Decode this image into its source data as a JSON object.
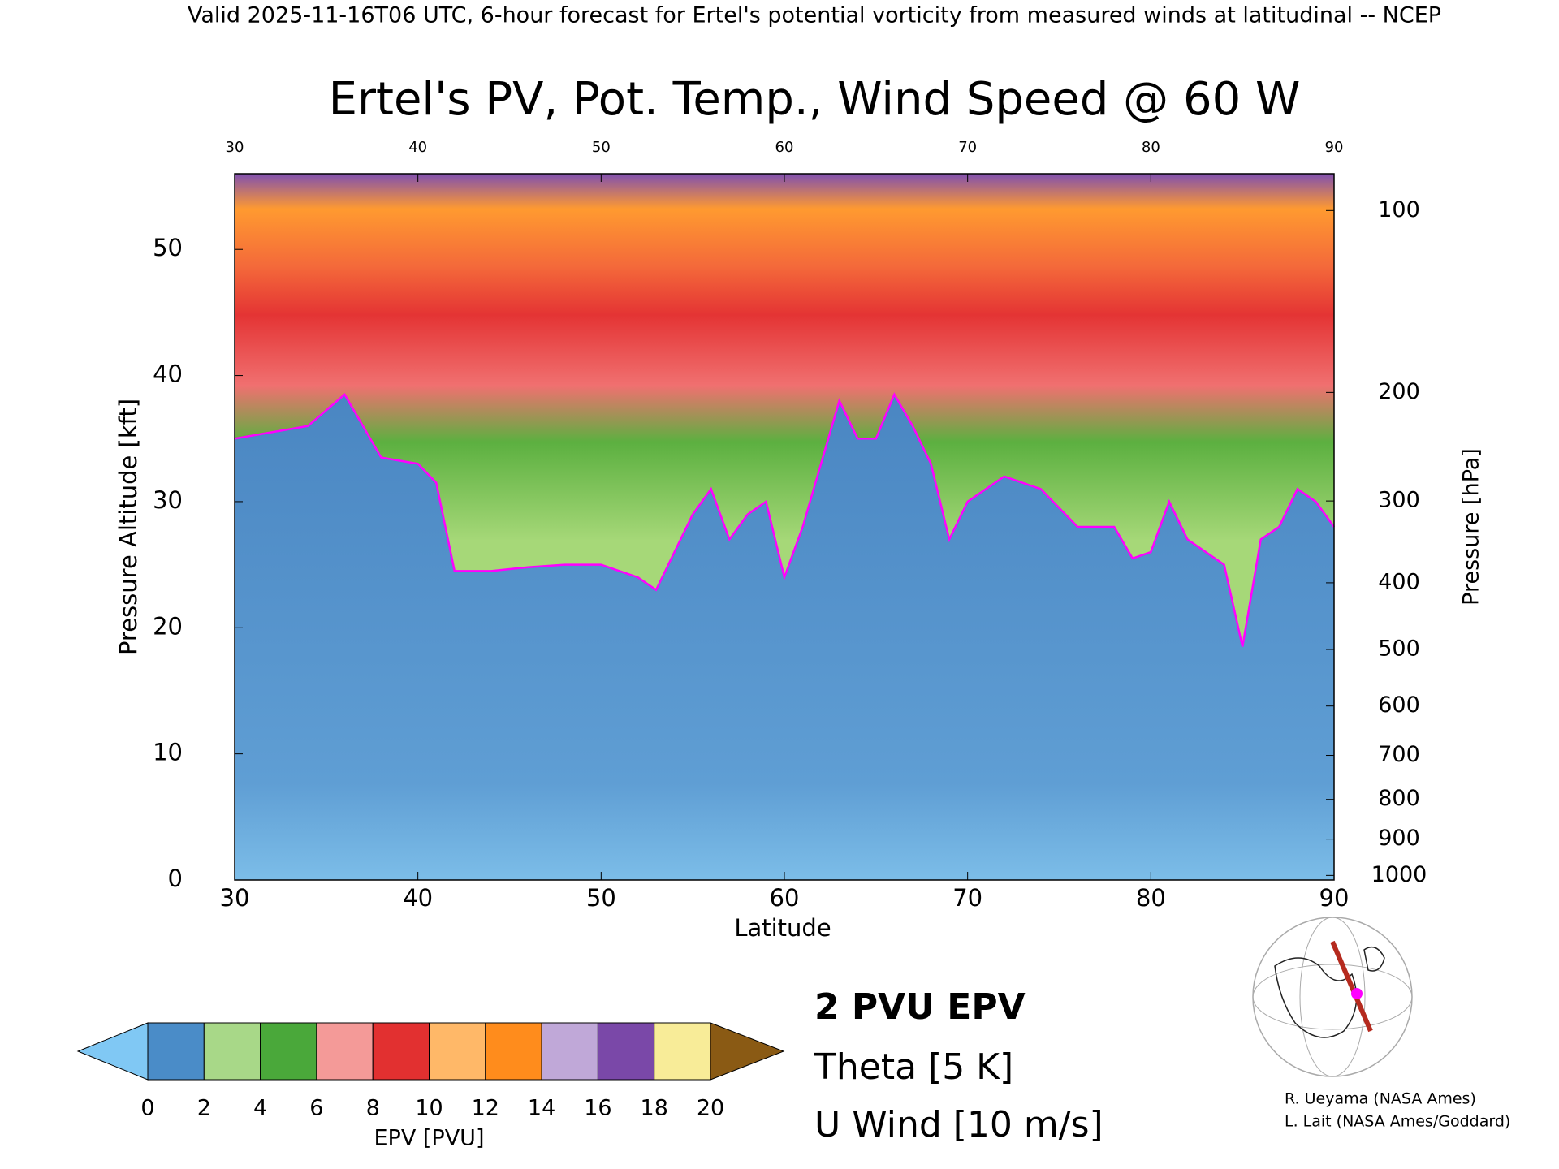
{
  "chart_data": {
    "type": "line",
    "header": "Valid 2025-11-16T06 UTC, 6-hour forecast for Ertel's potential vorticity from measured winds at latitudinal -- NCEP",
    "title": "Ertel's PV, Pot. Temp., Wind Speed @ 60 W",
    "xlabel": "Latitude",
    "ylabel": "Pressure Altitude [kft]",
    "y2label": "Pressure [hPa]",
    "xlim": [
      30,
      90
    ],
    "xticks": [
      30,
      40,
      50,
      60,
      70,
      80,
      90
    ],
    "ylim": [
      0,
      56
    ],
    "yticks": [
      0,
      10,
      20,
      30,
      40,
      50
    ],
    "y2ticks": [
      100,
      200,
      300,
      400,
      500,
      600,
      700,
      800,
      900,
      1000
    ],
    "series": [
      {
        "name": "2 PVU EPV",
        "color": "#ff00ff",
        "x": [
          30,
          32,
          34,
          36,
          37,
          38,
          40,
          41,
          42,
          44,
          46,
          48,
          50,
          52,
          53,
          54,
          55,
          56,
          57,
          58,
          59,
          60,
          61,
          62,
          63,
          64,
          65,
          66,
          67,
          68,
          69,
          70,
          72,
          74,
          76,
          78,
          79,
          80,
          81,
          82,
          84,
          85,
          86,
          87,
          88,
          89,
          90
        ],
        "values": [
          35,
          35.5,
          36,
          38.5,
          36,
          33.5,
          33,
          31.5,
          24.5,
          24.5,
          24.8,
          25,
          25,
          24,
          23,
          26,
          29,
          31,
          27,
          29,
          30,
          24,
          28,
          33,
          38,
          35,
          35,
          38.5,
          36,
          33,
          27,
          30,
          32,
          31,
          28,
          28,
          25.5,
          26,
          30,
          27,
          25,
          18.5,
          27,
          28,
          31,
          30,
          28
        ]
      }
    ],
    "annotations": [
      {
        "text": "Theta [5 K]",
        "color": "#a8a8a8"
      },
      {
        "text": "U Wind [10 m/s]",
        "color": "#000000"
      }
    ],
    "colorbar": {
      "label": "EPV [PVU]",
      "ticks": [
        0,
        2,
        4,
        6,
        8,
        10,
        12,
        14,
        16,
        18,
        20
      ],
      "colors": [
        "#4a8cc8",
        "#a8d888",
        "#4aa83a",
        "#f49a98",
        "#e23030",
        "#ffb868",
        "#ff8c1c",
        "#c0a8d8",
        "#7a48a8",
        "#f8ec98"
      ],
      "under_color": "#80c8f4",
      "over_color": "#8a5a14"
    },
    "credits": [
      "R. Ueyama (NASA Ames)",
      "L. Lait (NASA Ames/Goddard)"
    ]
  }
}
